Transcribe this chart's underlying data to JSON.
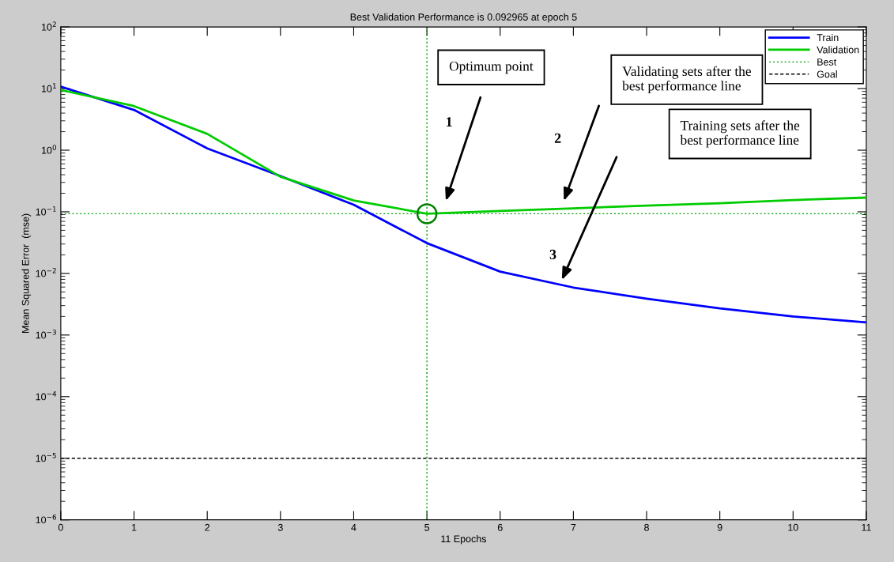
{
  "chart_data": {
    "type": "line",
    "title": "Best Validation Performance is 0.092965 at epoch 5",
    "xlabel": "11 Epochs",
    "ylabel": "Mean Squared Error  (mse)",
    "x": [
      0,
      1,
      2,
      3,
      4,
      5,
      6,
      7,
      8,
      9,
      10,
      11
    ],
    "series": [
      {
        "name": "Train",
        "color": "#0000ff",
        "values": [
          10.8,
          4.5,
          1.07,
          0.38,
          0.13,
          0.031,
          0.0107,
          0.0059,
          0.0039,
          0.0027,
          0.002,
          0.0016
        ]
      },
      {
        "name": "Validation",
        "color": "#00cc00",
        "values": [
          9.5,
          5.2,
          1.84,
          0.37,
          0.153,
          0.092965,
          0.103,
          0.114,
          0.126,
          0.138,
          0.155,
          0.17
        ]
      },
      {
        "type": "scatter",
        "marker": "circle",
        "color": "#008000",
        "x": [
          5
        ],
        "values": [
          0.092965
        ]
      }
    ],
    "log": "y",
    "xlim": [
      0,
      11
    ],
    "xticks": [
      0,
      1,
      2,
      3,
      4,
      5,
      6,
      7,
      8,
      9,
      10,
      11
    ],
    "ylim": [
      1e-06,
      100
    ],
    "yticks": [
      {
        "value": 1e-06,
        "label": "10$^{−6}$"
      },
      {
        "value": 1e-05,
        "label": "10$^{−5}$"
      },
      {
        "value": 0.0001,
        "label": "10$^{−4}$"
      },
      {
        "value": 0.001,
        "label": "10$^{−3}$"
      },
      {
        "value": 0.01,
        "label": "10$^{−2}$"
      },
      {
        "value": 0.1,
        "label": "10$^{−1}$"
      },
      {
        "value": 1,
        "label": "10$^{0}$"
      },
      {
        "value": 10,
        "label": "10$^{1}$"
      },
      {
        "value": 100,
        "label": "10$^{2}$"
      }
    ],
    "ref_lines": [
      {
        "axis": "y",
        "value": 0.092965,
        "label": "Best",
        "color": "#00a000",
        "line_style": "dotted"
      },
      {
        "axis": "x",
        "value": 5,
        "color": "#00a000",
        "line_style": "dotted"
      },
      {
        "axis": "y",
        "value": 1e-05,
        "label": "Goal",
        "color": "#000000",
        "line_style": "dashed"
      }
    ],
    "annotations": [
      "Optimum point",
      "Validating sets after the\nbest performance line",
      "Training sets after the\nbest performance line",
      "1",
      "2",
      "3"
    ],
    "legend": "top right",
    "grid": false,
    "marker": "none",
    "line_style": "solid"
  }
}
